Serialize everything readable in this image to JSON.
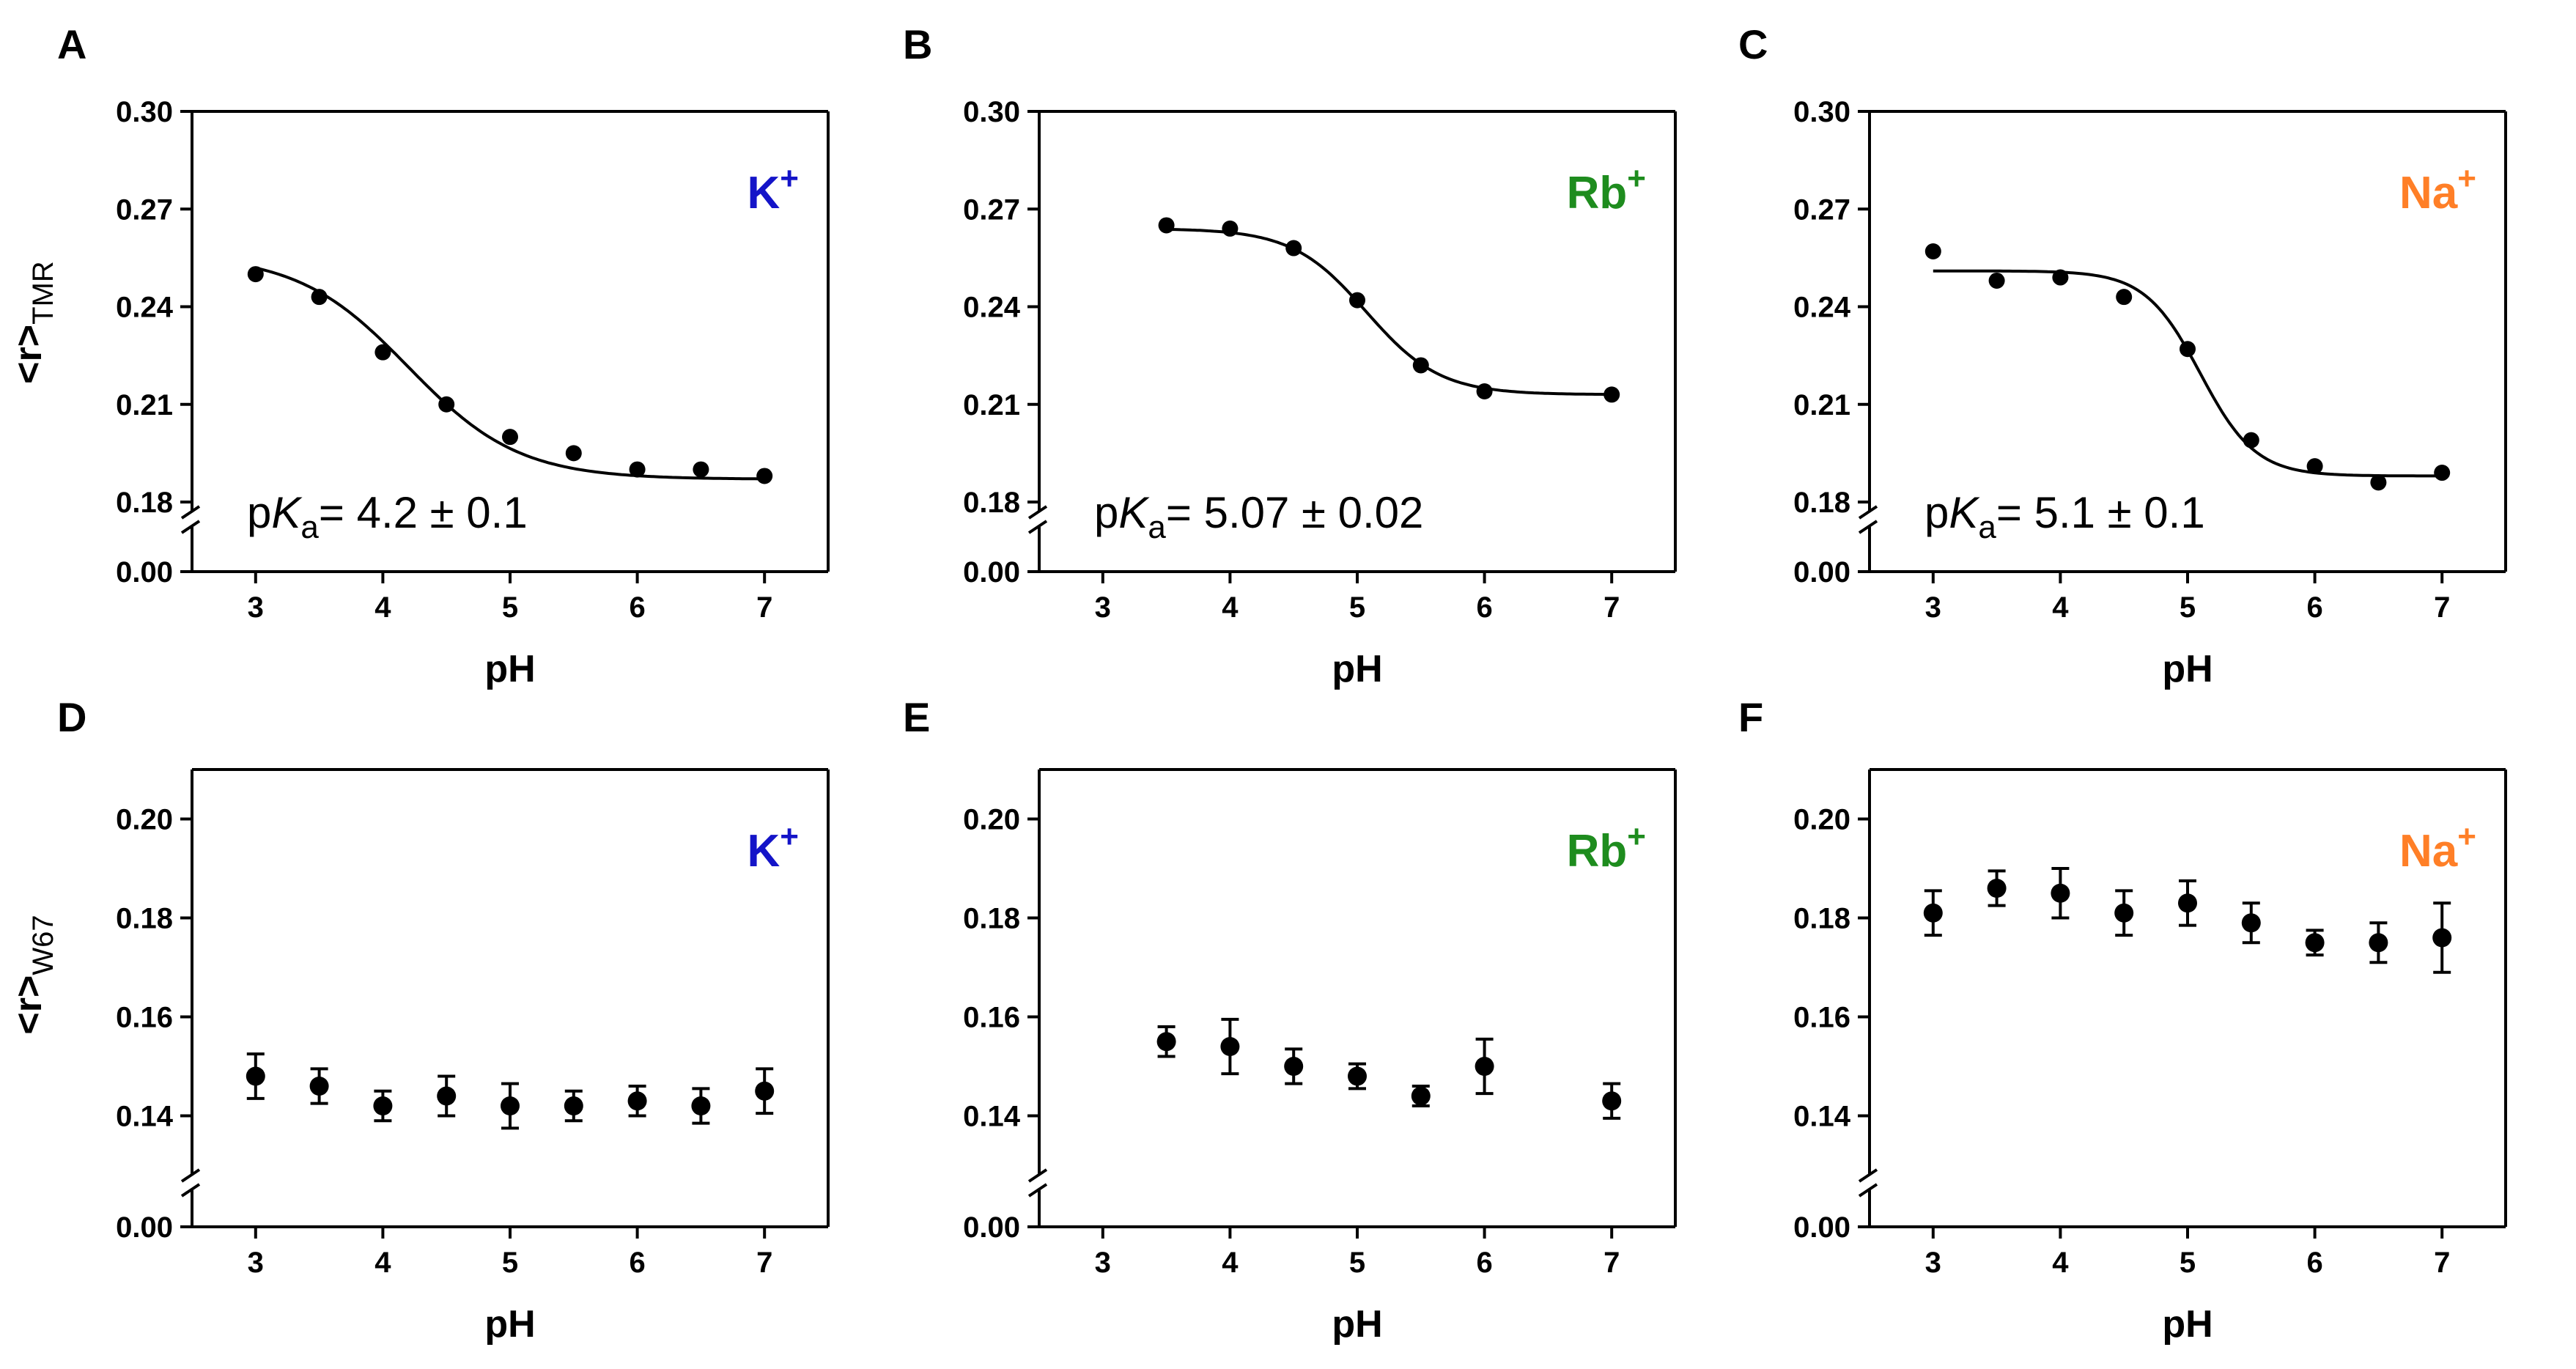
{
  "figure_labels": {
    "xlabel": "pH",
    "ylabel_top_main": "<r>",
    "ylabel_top_sub": "TMR",
    "ylabel_bottom_main": "<r>",
    "ylabel_bottom_sub": "W67",
    "pka_prefix": "p",
    "pka_K": "K",
    "pka_a": "a"
  },
  "colors": {
    "K": "#1414c8",
    "Rb": "#1e8c1e",
    "Na": "#ff7f27",
    "marker": "#000000"
  },
  "chart_data": [
    {
      "panel": "A",
      "type": "scatter",
      "row": 0,
      "ion_label": "K",
      "ion_sup": "+",
      "ion_color": "#1414c8",
      "pka_value": "= 4.2 ± 0.1",
      "xlim": [
        2.5,
        7.5
      ],
      "xticks": [
        3,
        4,
        5,
        6,
        7
      ],
      "ylim_lower": [
        0.0,
        0.18
      ],
      "ylim_upper": [
        0.18,
        0.3
      ],
      "yticks": [
        0.18,
        0.21,
        0.24,
        0.27,
        0.3
      ],
      "ytick_labels": [
        "0.18",
        "0.21",
        "0.24",
        "0.27",
        "0.30"
      ],
      "bottom_tick_label": "0.00",
      "x": [
        3,
        3.5,
        4,
        4.5,
        5,
        5.5,
        6,
        6.5,
        7
      ],
      "y": [
        0.25,
        0.243,
        0.226,
        0.21,
        0.2,
        0.195,
        0.19,
        0.19,
        0.188
      ],
      "error": null,
      "fit": {
        "top": 0.256,
        "bottom": 0.187,
        "pka": 4.2,
        "n": 1.0
      }
    },
    {
      "panel": "B",
      "type": "scatter",
      "row": 0,
      "ion_label": "Rb",
      "ion_sup": "+",
      "ion_color": "#1e8c1e",
      "pka_value": "= 5.07 ± 0.02",
      "xlim": [
        2.5,
        7.5
      ],
      "xticks": [
        3,
        4,
        5,
        6,
        7
      ],
      "ylim_lower": [
        0.0,
        0.18
      ],
      "ylim_upper": [
        0.18,
        0.3
      ],
      "yticks": [
        0.18,
        0.21,
        0.24,
        0.27,
        0.3
      ],
      "ytick_labels": [
        "0.18",
        "0.21",
        "0.24",
        "0.27",
        "0.30"
      ],
      "bottom_tick_label": "0.00",
      "x": [
        3.5,
        4,
        4.5,
        5,
        5.5,
        6,
        7
      ],
      "y": [
        0.265,
        0.264,
        0.258,
        0.242,
        0.222,
        0.214,
        0.213
      ],
      "error": null,
      "fit": {
        "top": 0.264,
        "bottom": 0.213,
        "pka": 5.07,
        "n": 1.5
      }
    },
    {
      "panel": "C",
      "type": "scatter",
      "row": 0,
      "ion_label": "Na",
      "ion_sup": "+",
      "ion_color": "#ff7f27",
      "pka_value": "= 5.1 ± 0.1",
      "xlim": [
        2.5,
        7.5
      ],
      "xticks": [
        3,
        4,
        5,
        6,
        7
      ],
      "ylim_lower": [
        0.0,
        0.18
      ],
      "ylim_upper": [
        0.18,
        0.3
      ],
      "yticks": [
        0.18,
        0.21,
        0.24,
        0.27,
        0.3
      ],
      "ytick_labels": [
        "0.18",
        "0.21",
        "0.24",
        "0.27",
        "0.30"
      ],
      "bottom_tick_label": "0.00",
      "x": [
        3,
        3.5,
        4,
        4.5,
        5,
        5.5,
        6,
        6.5,
        7
      ],
      "y": [
        0.257,
        0.248,
        0.249,
        0.243,
        0.227,
        0.199,
        0.191,
        0.186,
        0.189
      ],
      "error": null,
      "fit": {
        "top": 0.251,
        "bottom": 0.188,
        "pka": 5.1,
        "n": 2.0
      }
    },
    {
      "panel": "D",
      "type": "scatter",
      "row": 1,
      "ion_label": "K",
      "ion_sup": "+",
      "ion_color": "#1414c8",
      "xlim": [
        2.5,
        7.5
      ],
      "xticks": [
        3,
        4,
        5,
        6,
        7
      ],
      "ylim_lower": [
        0.0,
        0.13
      ],
      "ylim_upper": [
        0.13,
        0.21
      ],
      "yticks": [
        0.14,
        0.16,
        0.18,
        0.2
      ],
      "ytick_labels": [
        "0.14",
        "0.16",
        "0.18",
        "0.20"
      ],
      "bottom_tick_label": "0.00",
      "x": [
        3,
        3.5,
        4,
        4.5,
        5,
        5.5,
        6,
        6.5,
        7
      ],
      "y": [
        0.148,
        0.146,
        0.142,
        0.144,
        0.142,
        0.142,
        0.143,
        0.142,
        0.145
      ],
      "error": [
        0.0045,
        0.0035,
        0.003,
        0.004,
        0.0045,
        0.003,
        0.003,
        0.0035,
        0.0045
      ],
      "fit": null
    },
    {
      "panel": "E",
      "type": "scatter",
      "row": 1,
      "ion_label": "Rb",
      "ion_sup": "+",
      "ion_color": "#1e8c1e",
      "xlim": [
        2.5,
        7.5
      ],
      "xticks": [
        3,
        4,
        5,
        6,
        7
      ],
      "ylim_lower": [
        0.0,
        0.13
      ],
      "ylim_upper": [
        0.13,
        0.21
      ],
      "yticks": [
        0.14,
        0.16,
        0.18,
        0.2
      ],
      "ytick_labels": [
        "0.14",
        "0.16",
        "0.18",
        "0.20"
      ],
      "bottom_tick_label": "0.00",
      "x": [
        3.5,
        4,
        4.5,
        5,
        5.5,
        6,
        7
      ],
      "y": [
        0.155,
        0.154,
        0.15,
        0.148,
        0.144,
        0.15,
        0.143
      ],
      "error": [
        0.003,
        0.0055,
        0.0035,
        0.0025,
        0.002,
        0.0055,
        0.0035
      ],
      "fit": null
    },
    {
      "panel": "F",
      "type": "scatter",
      "row": 1,
      "ion_label": "Na",
      "ion_sup": "+",
      "ion_color": "#ff7f27",
      "xlim": [
        2.5,
        7.5
      ],
      "xticks": [
        3,
        4,
        5,
        6,
        7
      ],
      "ylim_lower": [
        0.0,
        0.13
      ],
      "ylim_upper": [
        0.13,
        0.21
      ],
      "yticks": [
        0.14,
        0.16,
        0.18,
        0.2
      ],
      "ytick_labels": [
        "0.14",
        "0.16",
        "0.18",
        "0.20"
      ],
      "bottom_tick_label": "0.00",
      "x": [
        3,
        3.5,
        4,
        4.5,
        5,
        5.5,
        6,
        6.5,
        7
      ],
      "y": [
        0.181,
        0.186,
        0.185,
        0.181,
        0.183,
        0.179,
        0.175,
        0.175,
        0.176
      ],
      "error": [
        0.0045,
        0.0035,
        0.005,
        0.0045,
        0.0045,
        0.004,
        0.0025,
        0.004,
        0.007
      ],
      "fit": null
    }
  ]
}
